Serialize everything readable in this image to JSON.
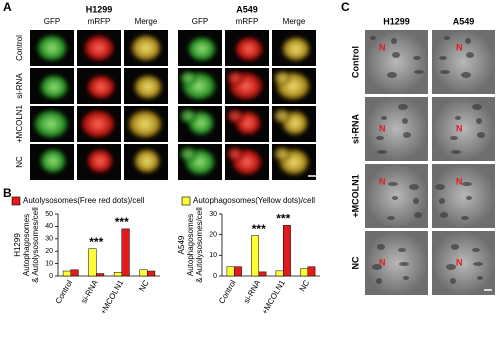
{
  "panel_a": {
    "label": "A",
    "groups": [
      {
        "title": "H1299",
        "columns": [
          "GFP",
          "mRFP",
          "Merge"
        ]
      },
      {
        "title": "A549",
        "columns": [
          "GFP",
          "mRFP",
          "Merge"
        ]
      }
    ],
    "rows": [
      "Control",
      "si-RNA",
      "+MCOLN1",
      "NC"
    ]
  },
  "panel_b": {
    "label": "B"
  },
  "panel_c": {
    "label": "C",
    "columns": [
      "H1299",
      "A549"
    ],
    "rows": [
      "Control",
      "si-RNA",
      "+MCOLN1",
      "NC"
    ],
    "nucleus_marker": "N"
  },
  "chart_data": [
    {
      "type": "bar",
      "ylabel": [
        "H1299",
        "Autophagosomes",
        "& Autolysosomes/cell"
      ],
      "categories": [
        "Control",
        "si-RNA",
        "+MCOLN1",
        "NC"
      ],
      "series": [
        {
          "name": "Autophagosomes(Yellow dots)/cell",
          "color": "#ffff33",
          "values": [
            4,
            22,
            3,
            5
          ]
        },
        {
          "name": "Autolysosomes(Free red dots)/cell",
          "color": "#e31a1c",
          "values": [
            5,
            2,
            38,
            4
          ]
        }
      ],
      "ylim": [
        0,
        50
      ],
      "yticks": [
        0,
        10,
        20,
        30,
        40,
        50
      ],
      "annotations": [
        {
          "category": "si-RNA",
          "text": "***"
        },
        {
          "category": "+MCOLN1",
          "text": "***"
        }
      ]
    },
    {
      "type": "bar",
      "ylabel": [
        "A549",
        "Autophagosomes",
        "& Autolysosomes/cell"
      ],
      "categories": [
        "Control",
        "si-RNA",
        "+MCOLN1",
        "NC"
      ],
      "series": [
        {
          "name": "Autophagosomes(Yellow dots)/cell",
          "color": "#ffff33",
          "values": [
            4.5,
            19.5,
            2.5,
            3.5
          ]
        },
        {
          "name": "Autolysosomes(Free red dots)/cell",
          "color": "#e31a1c",
          "values": [
            4.5,
            2,
            24.5,
            4.5
          ]
        }
      ],
      "ylim": [
        0,
        30
      ],
      "yticks": [
        0,
        10,
        20,
        30
      ],
      "annotations": [
        {
          "category": "si-RNA",
          "text": "***"
        },
        {
          "category": "+MCOLN1",
          "text": "***"
        }
      ]
    }
  ]
}
